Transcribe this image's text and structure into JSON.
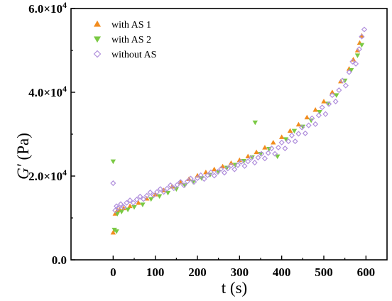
{
  "chart_data": {
    "type": "scatter",
    "xlabel": "t (s)",
    "ylabel_symbol": "G′",
    "ylabel_unit": " (Pa)",
    "xlim": [
      -100,
      650
    ],
    "ylim": [
      0,
      60000
    ],
    "x_ticks": [
      0,
      100,
      200,
      300,
      400,
      500,
      600
    ],
    "x_tick_labels": [
      "0",
      "100",
      "200",
      "300",
      "400",
      "500",
      "600"
    ],
    "y_ticks": [
      0,
      20000,
      40000,
      60000
    ],
    "y_tick_labels": [
      {
        "mantissa": "0.0",
        "exp": ""
      },
      {
        "mantissa": "2.0×10",
        "exp": "4"
      },
      {
        "mantissa": "4.0×10",
        "exp": "4"
      },
      {
        "mantissa": "6.0×10",
        "exp": "4"
      }
    ],
    "grid": false,
    "legend_position": "top-left",
    "series": [
      {
        "name": "with AS 1",
        "color": "#f28c1e",
        "marker": "triangle-up",
        "filled": true,
        "x": [
          0,
          5,
          10,
          15,
          25,
          40,
          60,
          80,
          100,
          120,
          140,
          160,
          180,
          200,
          220,
          240,
          260,
          280,
          300,
          320,
          340,
          360,
          380,
          400,
          420,
          440,
          460,
          480,
          500,
          520,
          540,
          560,
          570,
          580,
          585,
          590
        ],
        "y": [
          6500,
          11000,
          11800,
          12000,
          12300,
          12800,
          13600,
          14600,
          15600,
          16600,
          17500,
          18500,
          19300,
          20100,
          20900,
          21600,
          22300,
          23100,
          23800,
          24700,
          25700,
          26800,
          28000,
          29300,
          30800,
          32300,
          34000,
          35800,
          37800,
          40000,
          42600,
          45600,
          47800,
          50000,
          51800,
          53500
        ]
      },
      {
        "name": "with AS 2",
        "color": "#7ac943",
        "marker": "triangle-down",
        "filled": true,
        "x": [
          0,
          3,
          8,
          10,
          20,
          35,
          50,
          70,
          90,
          110,
          130,
          150,
          170,
          190,
          210,
          230,
          250,
          270,
          290,
          310,
          330,
          337,
          350,
          370,
          390,
          410,
          430,
          450,
          470,
          490,
          510,
          530,
          550,
          565,
          580,
          590
        ],
        "y": [
          23500,
          7200,
          6800,
          11000,
          11500,
          12000,
          12600,
          13200,
          14500,
          15200,
          16000,
          16900,
          17800,
          18600,
          19500,
          20300,
          21000,
          22000,
          22700,
          23600,
          24500,
          32800,
          25300,
          26500,
          24700,
          28800,
          30800,
          31800,
          33300,
          35300,
          37300,
          39300,
          42800,
          45300,
          48800,
          51300
        ]
      },
      {
        "name": "without AS",
        "color": "#b08fdc",
        "marker": "diamond-open",
        "filled": false,
        "x": [
          0,
          5,
          8,
          12,
          18,
          25,
          32,
          40,
          48,
          56,
          64,
          72,
          80,
          88,
          96,
          104,
          112,
          120,
          128,
          136,
          144,
          152,
          160,
          168,
          176,
          184,
          192,
          200,
          208,
          216,
          224,
          232,
          240,
          248,
          256,
          264,
          272,
          280,
          288,
          296,
          304,
          312,
          320,
          328,
          336,
          344,
          352,
          360,
          368,
          376,
          384,
          392,
          400,
          408,
          416,
          424,
          432,
          440,
          448,
          456,
          464,
          472,
          480,
          488,
          496,
          504,
          512,
          520,
          528,
          536,
          544,
          552,
          560,
          568,
          576,
          584,
          590,
          596
        ],
        "y": [
          18300,
          11800,
          12800,
          12400,
          13300,
          12600,
          13600,
          14200,
          13600,
          14400,
          15100,
          14500,
          15300,
          16100,
          15400,
          16200,
          16900,
          16200,
          17000,
          17800,
          17100,
          17900,
          18600,
          17800,
          18700,
          19400,
          18600,
          19500,
          20200,
          19300,
          20200,
          20900,
          20100,
          21000,
          21700,
          20800,
          21800,
          22500,
          21600,
          22600,
          23400,
          22400,
          23500,
          24300,
          23200,
          24400,
          25300,
          24200,
          25500,
          26600,
          25300,
          26800,
          28000,
          26600,
          28300,
          29700,
          28300,
          30100,
          31600,
          30200,
          32100,
          33800,
          32400,
          34500,
          36400,
          34800,
          37200,
          39300,
          37800,
          40500,
          42800,
          41600,
          44800,
          47300,
          46800,
          50300,
          53300,
          55000
        ]
      }
    ]
  }
}
